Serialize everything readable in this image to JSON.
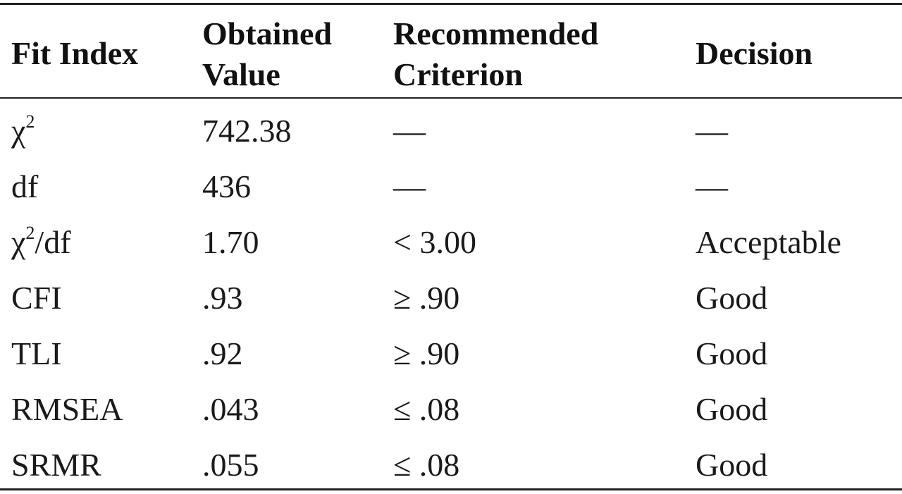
{
  "table": {
    "headers": {
      "fit_index": "Fit Index",
      "obtained_value_line1": "Obtained",
      "obtained_value_line2": "Value",
      "recommended_criterion_line1": "Recommended",
      "recommended_criterion_line2": "Criterion",
      "decision": "Decision"
    },
    "rows": [
      {
        "index_base": "χ",
        "index_sup": "2",
        "index_tail": "",
        "value": "742.38",
        "criterion": "—",
        "decision": "—"
      },
      {
        "index_base": "df",
        "index_sup": "",
        "index_tail": "",
        "value": "436",
        "criterion": "—",
        "decision": "—"
      },
      {
        "index_base": "χ",
        "index_sup": "2",
        "index_tail": "/df",
        "value": "1.70",
        "criterion": "< 3.00",
        "decision": "Acceptable"
      },
      {
        "index_base": "CFI",
        "index_sup": "",
        "index_tail": "",
        "value": ".93",
        "criterion": "≥ .90",
        "decision": "Good"
      },
      {
        "index_base": "TLI",
        "index_sup": "",
        "index_tail": "",
        "value": ".92",
        "criterion": "≥ .90",
        "decision": "Good"
      },
      {
        "index_base": "RMSEA",
        "index_sup": "",
        "index_tail": "",
        "value": ".043",
        "criterion": "≤ .08",
        "decision": "Good"
      },
      {
        "index_base": "SRMR",
        "index_sup": "",
        "index_tail": "",
        "value": ".055",
        "criterion": "≤ .08",
        "decision": "Good"
      }
    ]
  }
}
